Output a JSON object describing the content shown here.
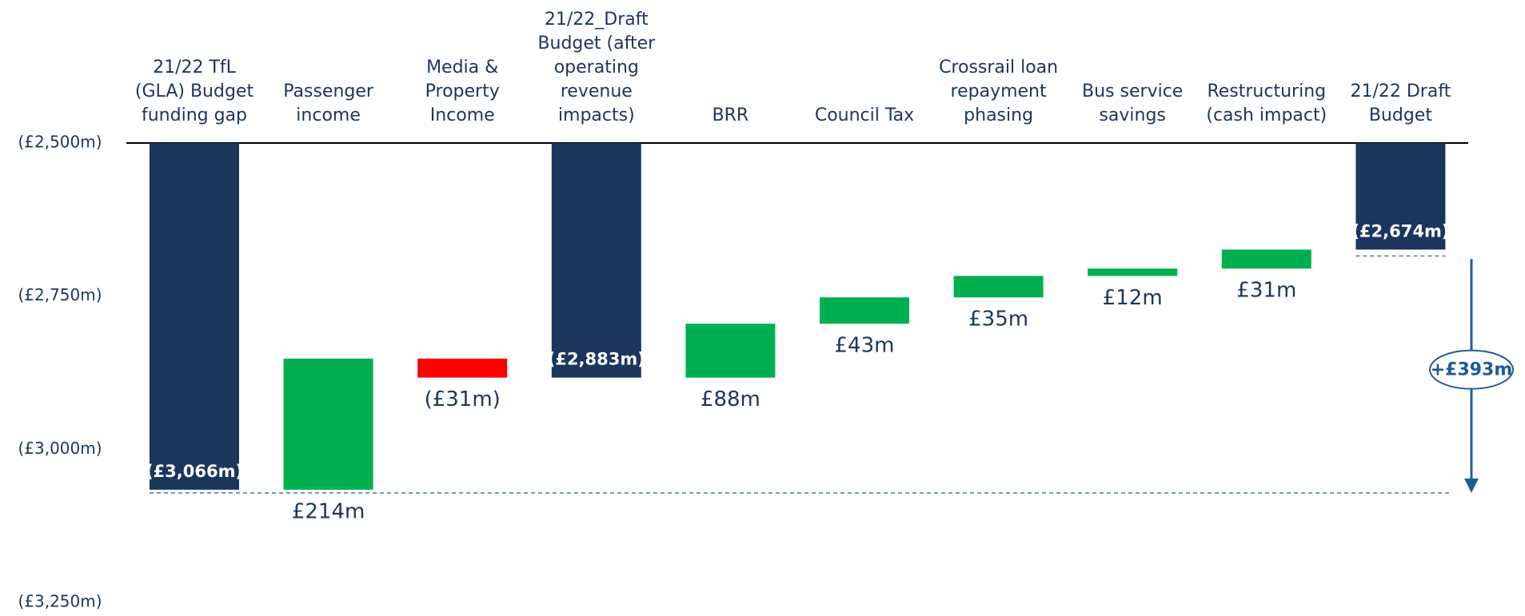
{
  "chart_data": {
    "type": "waterfall",
    "categories": [
      "21/22 TfL\n(GLA) Budget\nfunding gap",
      "Passenger\nincome",
      "Media &\nProperty\nIncome",
      "21/22_Draft\nBudget (after\noperating\nrevenue\nimpacts)",
      "BRR",
      "Council Tax",
      "Crossrail loan\nrepayment\nphasing",
      "Bus service\nsavings",
      "Restructuring\n(cash impact)",
      "21/22 Draft\nBudget"
    ],
    "measure": [
      "total",
      "relative",
      "relative",
      "total",
      "relative",
      "relative",
      "relative",
      "relative",
      "relative",
      "total"
    ],
    "values": [
      -3066,
      214,
      -31,
      -2883,
      88,
      43,
      35,
      12,
      31,
      -2674
    ],
    "value_labels": [
      "(£3,066m)",
      "£214m",
      "(£31m)",
      "(£2,883m)",
      "£88m",
      "£43m",
      "£35m",
      "£12m",
      "£31m",
      "(£2,674m)"
    ],
    "colors": {
      "total": "#1b365d",
      "increase": "#00b050",
      "decrease": "#ff0000"
    },
    "ylim": [
      -3250,
      -2500
    ],
    "yticks": [
      {
        "value": -2500,
        "label": "(£2,500m)"
      },
      {
        "value": -2750,
        "label": "(£2,750m)"
      },
      {
        "value": -3000,
        "label": "(£3,000m)"
      },
      {
        "value": -3250,
        "label": "(£3,250m)"
      }
    ],
    "annotations": [
      {
        "text": "+£393m"
      }
    ]
  }
}
